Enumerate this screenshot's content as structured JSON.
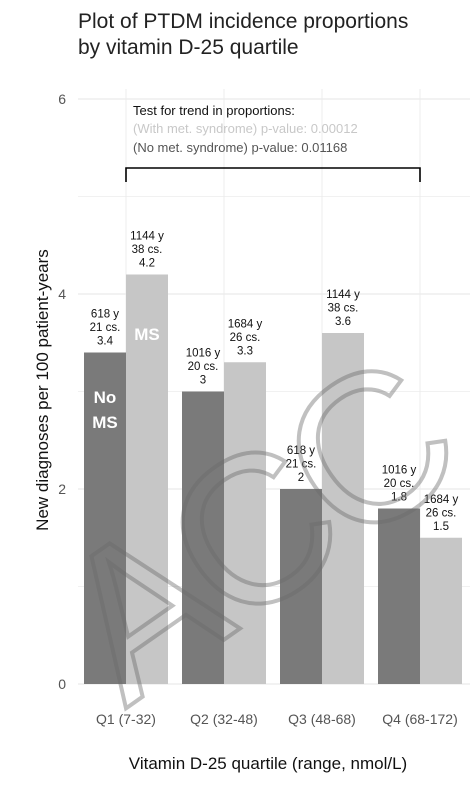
{
  "chart_data": {
    "type": "bar",
    "title_lines": [
      "Plot of PTDM incidence proportions",
      "by vitamin D-25 quartile"
    ],
    "xlabel": "Vitamin D-25 quartile (range, nmol/L)",
    "ylabel": "New diagnoses per 100 patient-years",
    "ylim": [
      0,
      6
    ],
    "yticks": [
      0,
      2,
      4,
      6
    ],
    "categories": [
      "Q1 (7-32)",
      "Q2 (32-48)",
      "Q3 (48-68)",
      "Q4 (68-172)"
    ],
    "series": [
      {
        "name": "No MS",
        "name_lines": [
          "No",
          "MS"
        ],
        "color": "#7a7a7a",
        "values": [
          3.4,
          3,
          2,
          1.8
        ],
        "labels": [
          [
            "618 y",
            "21 cs.",
            "3.4"
          ],
          [
            "1016 y",
            "20 cs.",
            "3"
          ],
          [
            "618 y",
            "21 cs.",
            "2"
          ],
          [
            "1016 y",
            "20 cs.",
            "1.8"
          ]
        ]
      },
      {
        "name": "MS",
        "name_lines": [
          "MS"
        ],
        "color": "#c6c6c6",
        "values": [
          4.2,
          3.3,
          3.6,
          1.5
        ],
        "labels": [
          [
            "1144 y",
            "38 cs.",
            "4.2"
          ],
          [
            "1684 y",
            "26 cs.",
            "3.3"
          ],
          [
            "1144 y",
            "38 cs.",
            "3.6"
          ],
          [
            "1684 y",
            "26 cs.",
            "1.5"
          ]
        ]
      }
    ],
    "annotation": {
      "heading": "Test for trend in proportions:",
      "lines": [
        {
          "text": "(With met. syndrome) p-value: 0.00012",
          "color": "#c8c8c8"
        },
        {
          "text": "(No met. syndrome) p-value: 0.01168",
          "color": "#555555"
        }
      ],
      "bracket_from": 0,
      "bracket_to": 3
    },
    "grid": true,
    "legend": "none"
  },
  "watermark": "ACC"
}
